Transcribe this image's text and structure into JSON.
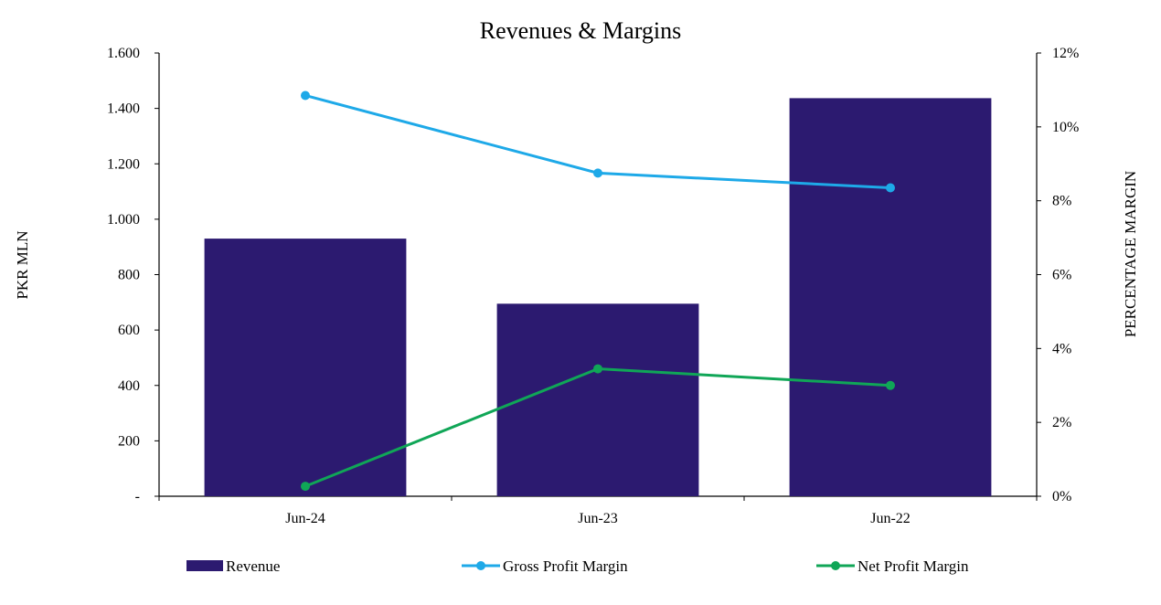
{
  "chart_data": {
    "type": "bar",
    "title": "Revenues  & Margins",
    "categories": [
      "Jun-24",
      "Jun-23",
      "Jun-22"
    ],
    "ylabel": "PKR MLN",
    "y2label": "PERCENTAGE MARGIN",
    "ylim": [
      0,
      1600
    ],
    "y2lim": [
      0,
      12
    ],
    "y_ticks": [
      "-",
      "200",
      "400",
      "600",
      "800",
      "1.000",
      "1.200",
      "1.400",
      "1.600"
    ],
    "y2_ticks": [
      "0%",
      "2%",
      "4%",
      "6%",
      "8%",
      "10%",
      "12%"
    ],
    "grid": false,
    "legend_position": "bottom",
    "series": [
      {
        "name": "Revenue",
        "type": "bar",
        "axis": "left",
        "color": "#2C1A70",
        "values": [
          930,
          695,
          1437
        ]
      },
      {
        "name": "Gross Profit Margin",
        "type": "line",
        "axis": "right",
        "color": "#1EA9E8",
        "values": [
          10.85,
          8.75,
          8.35
        ]
      },
      {
        "name": "Net Profit Margin",
        "type": "line",
        "axis": "right",
        "color": "#10A657",
        "values": [
          0.27,
          3.45,
          3.0
        ]
      }
    ]
  }
}
